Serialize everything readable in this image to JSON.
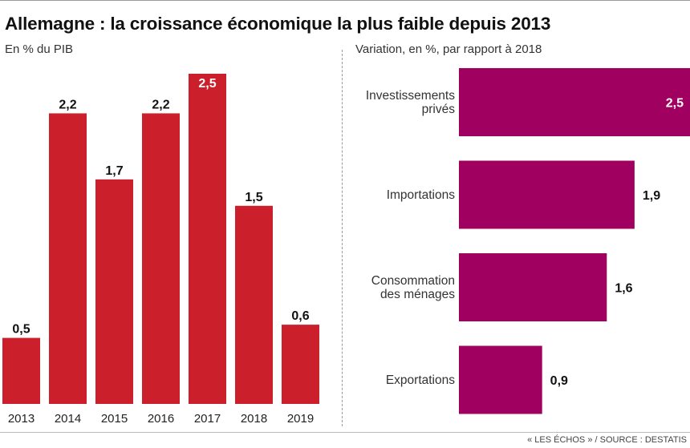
{
  "header": {
    "title": "Allemagne : la croissance économique la plus faible depuis 2013"
  },
  "footer": {
    "source": "« LES ÉCHOS » / SOURCE : DESTATIS"
  },
  "colors": {
    "left_bars": "#cc1f2c",
    "right_bars": "#a0005f"
  },
  "chart_data": [
    {
      "type": "bar",
      "orientation": "vertical",
      "subtitle": "En % du PIB",
      "categories": [
        "2013",
        "2014",
        "2015",
        "2016",
        "2017",
        "2018",
        "2019"
      ],
      "value_labels": [
        "0,5",
        "2,2",
        "1,7",
        "2,2",
        "2,5",
        "1,5",
        "0,6"
      ],
      "values": [
        0.5,
        2.2,
        1.7,
        2.2,
        2.5,
        1.5,
        0.6
      ],
      "ylim": [
        0,
        2.5
      ],
      "grid": false,
      "legend": "none",
      "xlabel": "",
      "ylabel": ""
    },
    {
      "type": "bar",
      "orientation": "horizontal",
      "subtitle": "Variation, en %, par rapport à 2018",
      "categories": [
        [
          "Investissements",
          "privés"
        ],
        [
          "Importations"
        ],
        [
          "Consommation",
          "des ménages"
        ],
        [
          "Exportations"
        ]
      ],
      "value_labels": [
        "2,5",
        "1,9",
        "1,6",
        "0,9"
      ],
      "values": [
        2.5,
        1.9,
        1.6,
        0.9
      ],
      "xlim": [
        0,
        2.5
      ],
      "grid": false,
      "legend": "none",
      "xlabel": "",
      "ylabel": ""
    }
  ]
}
